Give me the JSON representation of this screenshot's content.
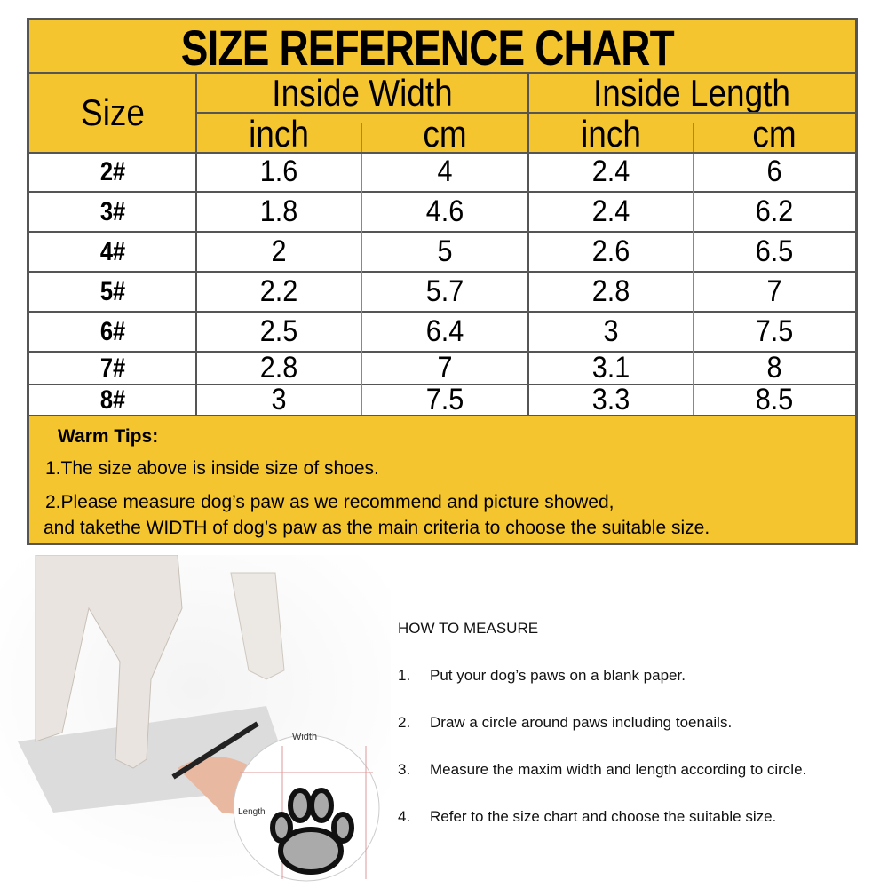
{
  "title": "SIZE REFERENCE CHART",
  "headers": {
    "size": "Size",
    "inside_width": "Inside Width",
    "inside_length": "Inside Length",
    "inch": "inch",
    "cm": "cm"
  },
  "rows": [
    {
      "size": "2#",
      "w_in": "1.6",
      "w_cm": "4",
      "l_in": "2.4",
      "l_cm": "6"
    },
    {
      "size": "3#",
      "w_in": "1.8",
      "w_cm": "4.6",
      "l_in": "2.4",
      "l_cm": "6.2"
    },
    {
      "size": "4#",
      "w_in": "2",
      "w_cm": "5",
      "l_in": "2.6",
      "l_cm": "6.5"
    },
    {
      "size": "5#",
      "w_in": "2.2",
      "w_cm": "5.7",
      "l_in": "2.8",
      "l_cm": "7"
    },
    {
      "size": "6#",
      "w_in": "2.5",
      "w_cm": "6.4",
      "l_in": "3",
      "l_cm": "7.5"
    },
    {
      "size": "7#",
      "w_in": "2.8",
      "w_cm": "7",
      "l_in": "3.1",
      "l_cm": "8"
    },
    {
      "size": "8#",
      "w_in": "3",
      "w_cm": "7.5",
      "l_in": "3.3",
      "l_cm": "8.5"
    }
  ],
  "tips": {
    "heading": "Warm Tips:",
    "line1": "1.The size above is inside size of shoes.",
    "line2": "2.Please measure dog’s paw as we recommend and picture showed,",
    "line3": "and takethe WIDTH of dog’s paw as the main criteria to choose the suitable size."
  },
  "illustration": {
    "width_label": "Width",
    "length_label": "Length"
  },
  "how_to": {
    "heading": "HOW TO MEASURE",
    "steps": [
      {
        "n": "1.",
        "text": "Put your dog’s paws on a blank paper."
      },
      {
        "n": "2.",
        "text": "Draw a circle around paws including toenails."
      },
      {
        "n": "3.",
        "text": "Measure the maxim width and length according to circle."
      },
      {
        "n": "4.",
        "text": "Refer to the size chart and choose the suitable size."
      }
    ]
  },
  "colors": {
    "header_bg": "#F5C52F",
    "border": "#555555"
  }
}
